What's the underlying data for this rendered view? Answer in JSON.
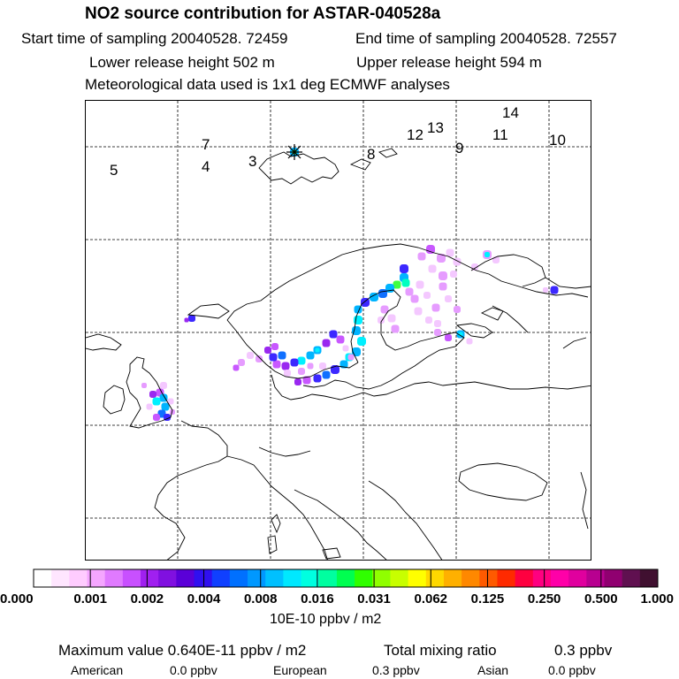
{
  "header": {
    "title": "NO2 source contribution for ASTAR-040528a",
    "start_time": "Start time of sampling 20040528. 72459",
    "end_time": "End time of sampling 20040528. 72557",
    "lower_height": "Lower release height  502 m",
    "upper_height": "Upper release height  594 m",
    "met_data": "Meteorological data used is 1x1 deg ECMWF analyses"
  },
  "map": {
    "trajectory_labels": [
      "5",
      "7",
      "4",
      "3",
      "8",
      "9",
      "12",
      "13",
      "14",
      "11",
      "10"
    ]
  },
  "colorbar": {
    "colors": [
      "#ffffff",
      "#ffe6ff",
      "#ffccff",
      "#f5a6ff",
      "#e07aff",
      "#c850ff",
      "#a020f0",
      "#8010e0",
      "#5a00d8",
      "#3010f0",
      "#1040ff",
      "#0070ff",
      "#0098ff",
      "#00c0ff",
      "#00e8ff",
      "#00ffe0",
      "#00ffa0",
      "#00ff50",
      "#30ff00",
      "#90ff00",
      "#c8ff00",
      "#ffff00",
      "#ffd800",
      "#ffb000",
      "#ff8800",
      "#ff5a00",
      "#ff2a00",
      "#ff0040",
      "#ff0080",
      "#ff00a8",
      "#e0009e",
      "#b80090",
      "#900070",
      "#601050",
      "#401030"
    ],
    "tick_labels": [
      "0.000",
      "0.001",
      "0.002",
      "0.004",
      "0.008",
      "0.016",
      "0.031",
      "0.062",
      "0.125",
      "0.250",
      "0.500",
      "1.000"
    ],
    "unit": "10E-10 ppbv / m2"
  },
  "summary": {
    "max_value": "Maximum value  0.640E-11 ppbv / m2",
    "total_label": "Total mixing ratio",
    "total_value": "0.3 ppbv",
    "regions": [
      {
        "name": "American",
        "value": "0.0 ppbv"
      },
      {
        "name": "European",
        "value": "0.3 ppbv"
      },
      {
        "name": "Asian",
        "value": "0.0 ppbv"
      }
    ]
  }
}
